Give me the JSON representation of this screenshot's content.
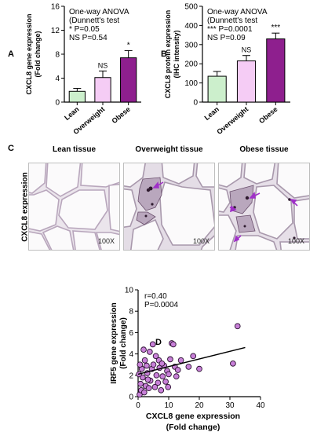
{
  "panels": {
    "A": {
      "letter": "A",
      "ylabel": [
        "CXCL8 gene expression",
        "(Fold change)"
      ],
      "annotation": [
        "One-way ANOVA",
        "(Dunnett's test",
        "* P=0.05",
        "NS P=0.54"
      ],
      "ticks": [
        0,
        4,
        8,
        12,
        16
      ],
      "ylim": [
        0,
        16
      ],
      "categories": [
        "Lean",
        "Overweight",
        "Obese"
      ],
      "values": [
        1.8,
        4.1,
        7.4
      ],
      "errors": [
        0.5,
        1.1,
        1.2
      ],
      "sig": [
        "",
        "NS",
        "*"
      ],
      "colors": [
        "#ccefcc",
        "#f5ccf5",
        "#8e1f8e"
      ]
    },
    "B": {
      "letter": "B",
      "ylabel": [
        "CXCL8 protein expression",
        "(IHC intensity)"
      ],
      "annotation": [
        "One-way ANOVA",
        "(Dunnett's test",
        "*** P=0.0001",
        "NS P=0.09"
      ],
      "ticks": [
        0,
        100,
        200,
        300,
        400,
        500
      ],
      "ylim": [
        0,
        500
      ],
      "categories": [
        "Lean",
        "Overweight",
        "Obese"
      ],
      "values": [
        135,
        215,
        330
      ],
      "errors": [
        25,
        28,
        30
      ],
      "sig": [
        "",
        "NS",
        "***"
      ],
      "colors": [
        "#ccefcc",
        "#f5ccf5",
        "#8e1f8e"
      ]
    }
  },
  "panel_c": {
    "letter": "C",
    "side_label": "CXCL8 expression",
    "titles": [
      "Lean tissue",
      "Overweight tissue",
      "Obese tissue"
    ],
    "magnification": "100X",
    "arrow_color": "#a030c8"
  },
  "chart_data": {
    "type": "scatter",
    "letter": "D",
    "annotation": [
      "r=0.40",
      "P=0.0004"
    ],
    "xlabel": [
      "CXCL8 gene expression",
      "(Fold change)"
    ],
    "ylabel": [
      "IRF5 gene expression",
      "(Fold change)"
    ],
    "xticks": [
      0,
      10,
      20,
      30,
      40
    ],
    "yticks": [
      0,
      2,
      4,
      6,
      8,
      10
    ],
    "xlim": [
      0,
      40
    ],
    "ylim": [
      0,
      10
    ],
    "regression": {
      "x": [
        0,
        35
      ],
      "y": [
        2.1,
        4.6
      ]
    },
    "point_color": "#c880d8",
    "points": [
      [
        0.5,
        0.2
      ],
      [
        1.0,
        0.6
      ],
      [
        0.8,
        1.2
      ],
      [
        1.5,
        1.8
      ],
      [
        2.0,
        0.4
      ],
      [
        2.5,
        1.0
      ],
      [
        3.0,
        2.2
      ],
      [
        1.2,
        2.6
      ],
      [
        0.6,
        3.0
      ],
      [
        2.2,
        3.4
      ],
      [
        3.5,
        0.8
      ],
      [
        4.0,
        1.5
      ],
      [
        4.5,
        2.6
      ],
      [
        5.0,
        3.0
      ],
      [
        5.5,
        0.9
      ],
      [
        3.8,
        4.2
      ],
      [
        6.0,
        2.0
      ],
      [
        6.5,
        1.3
      ],
      [
        7.0,
        2.7
      ],
      [
        7.5,
        0.6
      ],
      [
        2.8,
        2.9
      ],
      [
        8.0,
        1.9
      ],
      [
        8.5,
        2.9
      ],
      [
        9.0,
        1.4
      ],
      [
        9.5,
        2.4
      ],
      [
        10.0,
        2.1
      ],
      [
        10.5,
        3.5
      ],
      [
        11.0,
        5.0
      ],
      [
        11.5,
        4.9
      ],
      [
        12.0,
        2.8
      ],
      [
        12.5,
        1.9
      ],
      [
        13.0,
        2.5
      ],
      [
        4.8,
        4.9
      ],
      [
        5.8,
        3.8
      ],
      [
        1.8,
        4.4
      ],
      [
        0.3,
        2.1
      ],
      [
        3.2,
        1.6
      ],
      [
        6.8,
        3.4
      ],
      [
        16.5,
        2.8
      ],
      [
        18.0,
        3.8
      ],
      [
        20.0,
        2.6
      ],
      [
        31.0,
        3.1
      ],
      [
        32.5,
        6.6
      ],
      [
        9.8,
        0.9
      ],
      [
        14.0,
        3.4
      ],
      [
        7.8,
        3.1
      ]
    ]
  }
}
